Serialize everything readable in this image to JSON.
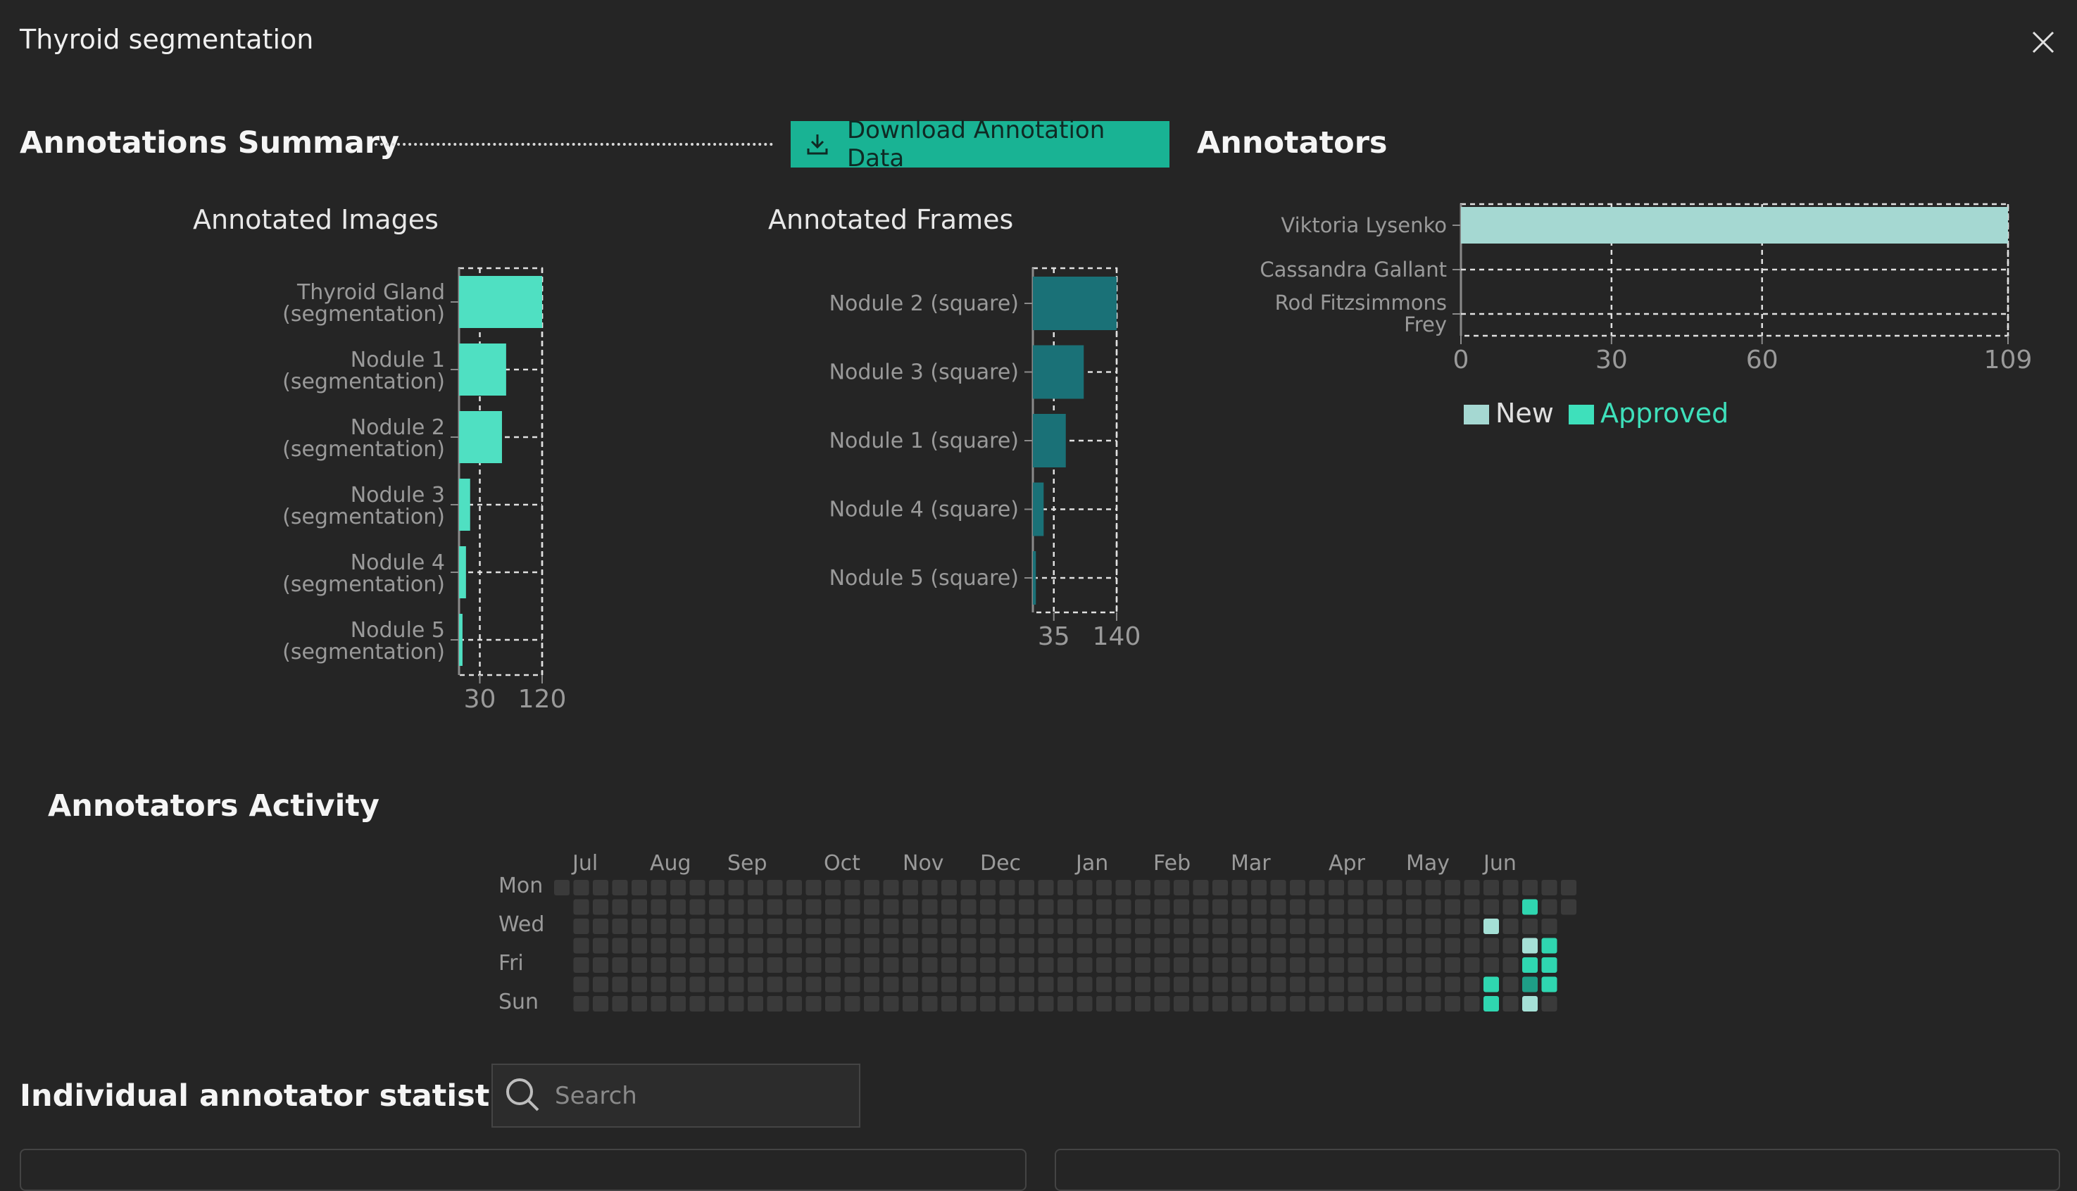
{
  "window": {
    "title": "Thyroid segmentation"
  },
  "summary": {
    "title": "Annotations Summary",
    "download_label": "Download Annotation Data"
  },
  "annotators": {
    "title": "Annotators"
  },
  "activity": {
    "title": "Annotators Activity"
  },
  "stats": {
    "title": "Individual annotator statistics",
    "search_placeholder": "Search"
  },
  "colors": {
    "accent": "#19b394",
    "bar_light": "#4fe0c2",
    "bar_dark": "#1a7177",
    "new": "#a5d8d2",
    "approved": "#3ee0bb"
  },
  "chart_data": [
    {
      "type": "bar",
      "orientation": "horizontal",
      "title": "Annotated Images",
      "categories": [
        "Thyroid Gland (segmentation)",
        "Nodule 1 (segmentation)",
        "Nodule 2 (segmentation)",
        "Nodule 3 (segmentation)",
        "Nodule 4 (segmentation)",
        "Nodule 5 (segmentation)"
      ],
      "values": [
        120,
        68,
        62,
        16,
        10,
        5
      ],
      "xticks": [
        30,
        120
      ],
      "xlim": [
        0,
        120
      ]
    },
    {
      "type": "bar",
      "orientation": "horizontal",
      "title": "Annotated Frames",
      "categories": [
        "Nodule 2 (square)",
        "Nodule 3 (square)",
        "Nodule 1 (square)",
        "Nodule 4 (square)",
        "Nodule 5 (square)"
      ],
      "values": [
        140,
        85,
        55,
        18,
        5
      ],
      "xticks": [
        35,
        140
      ],
      "xlim": [
        0,
        140
      ]
    },
    {
      "type": "bar",
      "orientation": "horizontal",
      "stacked": true,
      "title": "",
      "categories": [
        "Viktoria Lysenko",
        "Cassandra Gallant",
        "Rod Fitzsimmons Frey"
      ],
      "series": [
        {
          "name": "New",
          "values": [
            109,
            0,
            0
          ]
        },
        {
          "name": "Approved",
          "values": [
            0,
            0,
            0
          ]
        }
      ],
      "xticks": [
        0,
        30,
        60,
        109
      ],
      "xlim": [
        0,
        109
      ],
      "legend": "bottom-left"
    },
    {
      "type": "heatmap",
      "months": [
        "Jul",
        "Aug",
        "Sep",
        "Oct",
        "Nov",
        "Dec",
        "Jan",
        "Feb",
        "Mar",
        "Apr",
        "May",
        "Jun"
      ],
      "weekdays": [
        "Mon",
        "Wed",
        "Fri",
        "Sun"
      ],
      "weeks": 53,
      "levels": {
        "comment": "week index, day index (0=Mon..6=Sun), level (1=light, 2=mid, 3=bright)",
        "cells": [
          [
            48,
            2,
            1
          ],
          [
            48,
            5,
            3
          ],
          [
            48,
            6,
            3
          ],
          [
            50,
            1,
            3
          ],
          [
            50,
            3,
            1
          ],
          [
            50,
            4,
            3
          ],
          [
            50,
            5,
            2
          ],
          [
            50,
            6,
            1
          ],
          [
            51,
            3,
            3
          ],
          [
            51,
            4,
            3
          ],
          [
            51,
            5,
            3
          ]
        ]
      }
    }
  ]
}
